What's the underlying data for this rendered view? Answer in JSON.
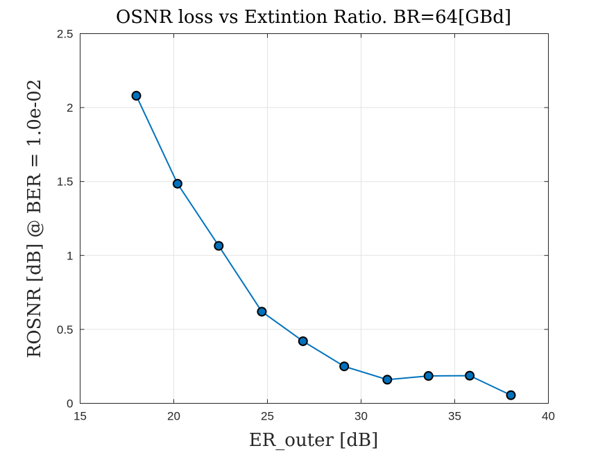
{
  "chart_data": {
    "type": "line",
    "title": "OSNR loss vs Extintion Ratio. BR=64[GBd]",
    "xlabel": "ER_outer [dB]",
    "ylabel": "ROSNR [dB] @ BER = 1.0e-02",
    "xlim": [
      15,
      40
    ],
    "ylim": [
      0,
      2.5
    ],
    "xticks": [
      15,
      20,
      25,
      30,
      35,
      40
    ],
    "yticks": [
      0,
      0.5,
      1,
      1.5,
      2,
      2.5
    ],
    "xtick_labels": [
      "15",
      "20",
      "25",
      "30",
      "35",
      "40"
    ],
    "ytick_labels": [
      "0",
      "0.5",
      "1",
      "1.5",
      "2",
      "2.5"
    ],
    "grid": true,
    "series": [
      {
        "x": [
          18.0,
          20.2,
          22.4,
          24.7,
          26.9,
          29.1,
          31.4,
          33.6,
          35.8,
          38.0
        ],
        "y": [
          2.08,
          1.485,
          1.065,
          0.62,
          0.42,
          0.25,
          0.16,
          0.185,
          0.187,
          0.055
        ],
        "color": "#0072BD",
        "marker_color": "#0072BD",
        "marker_edge_color": "#000000"
      }
    ]
  }
}
